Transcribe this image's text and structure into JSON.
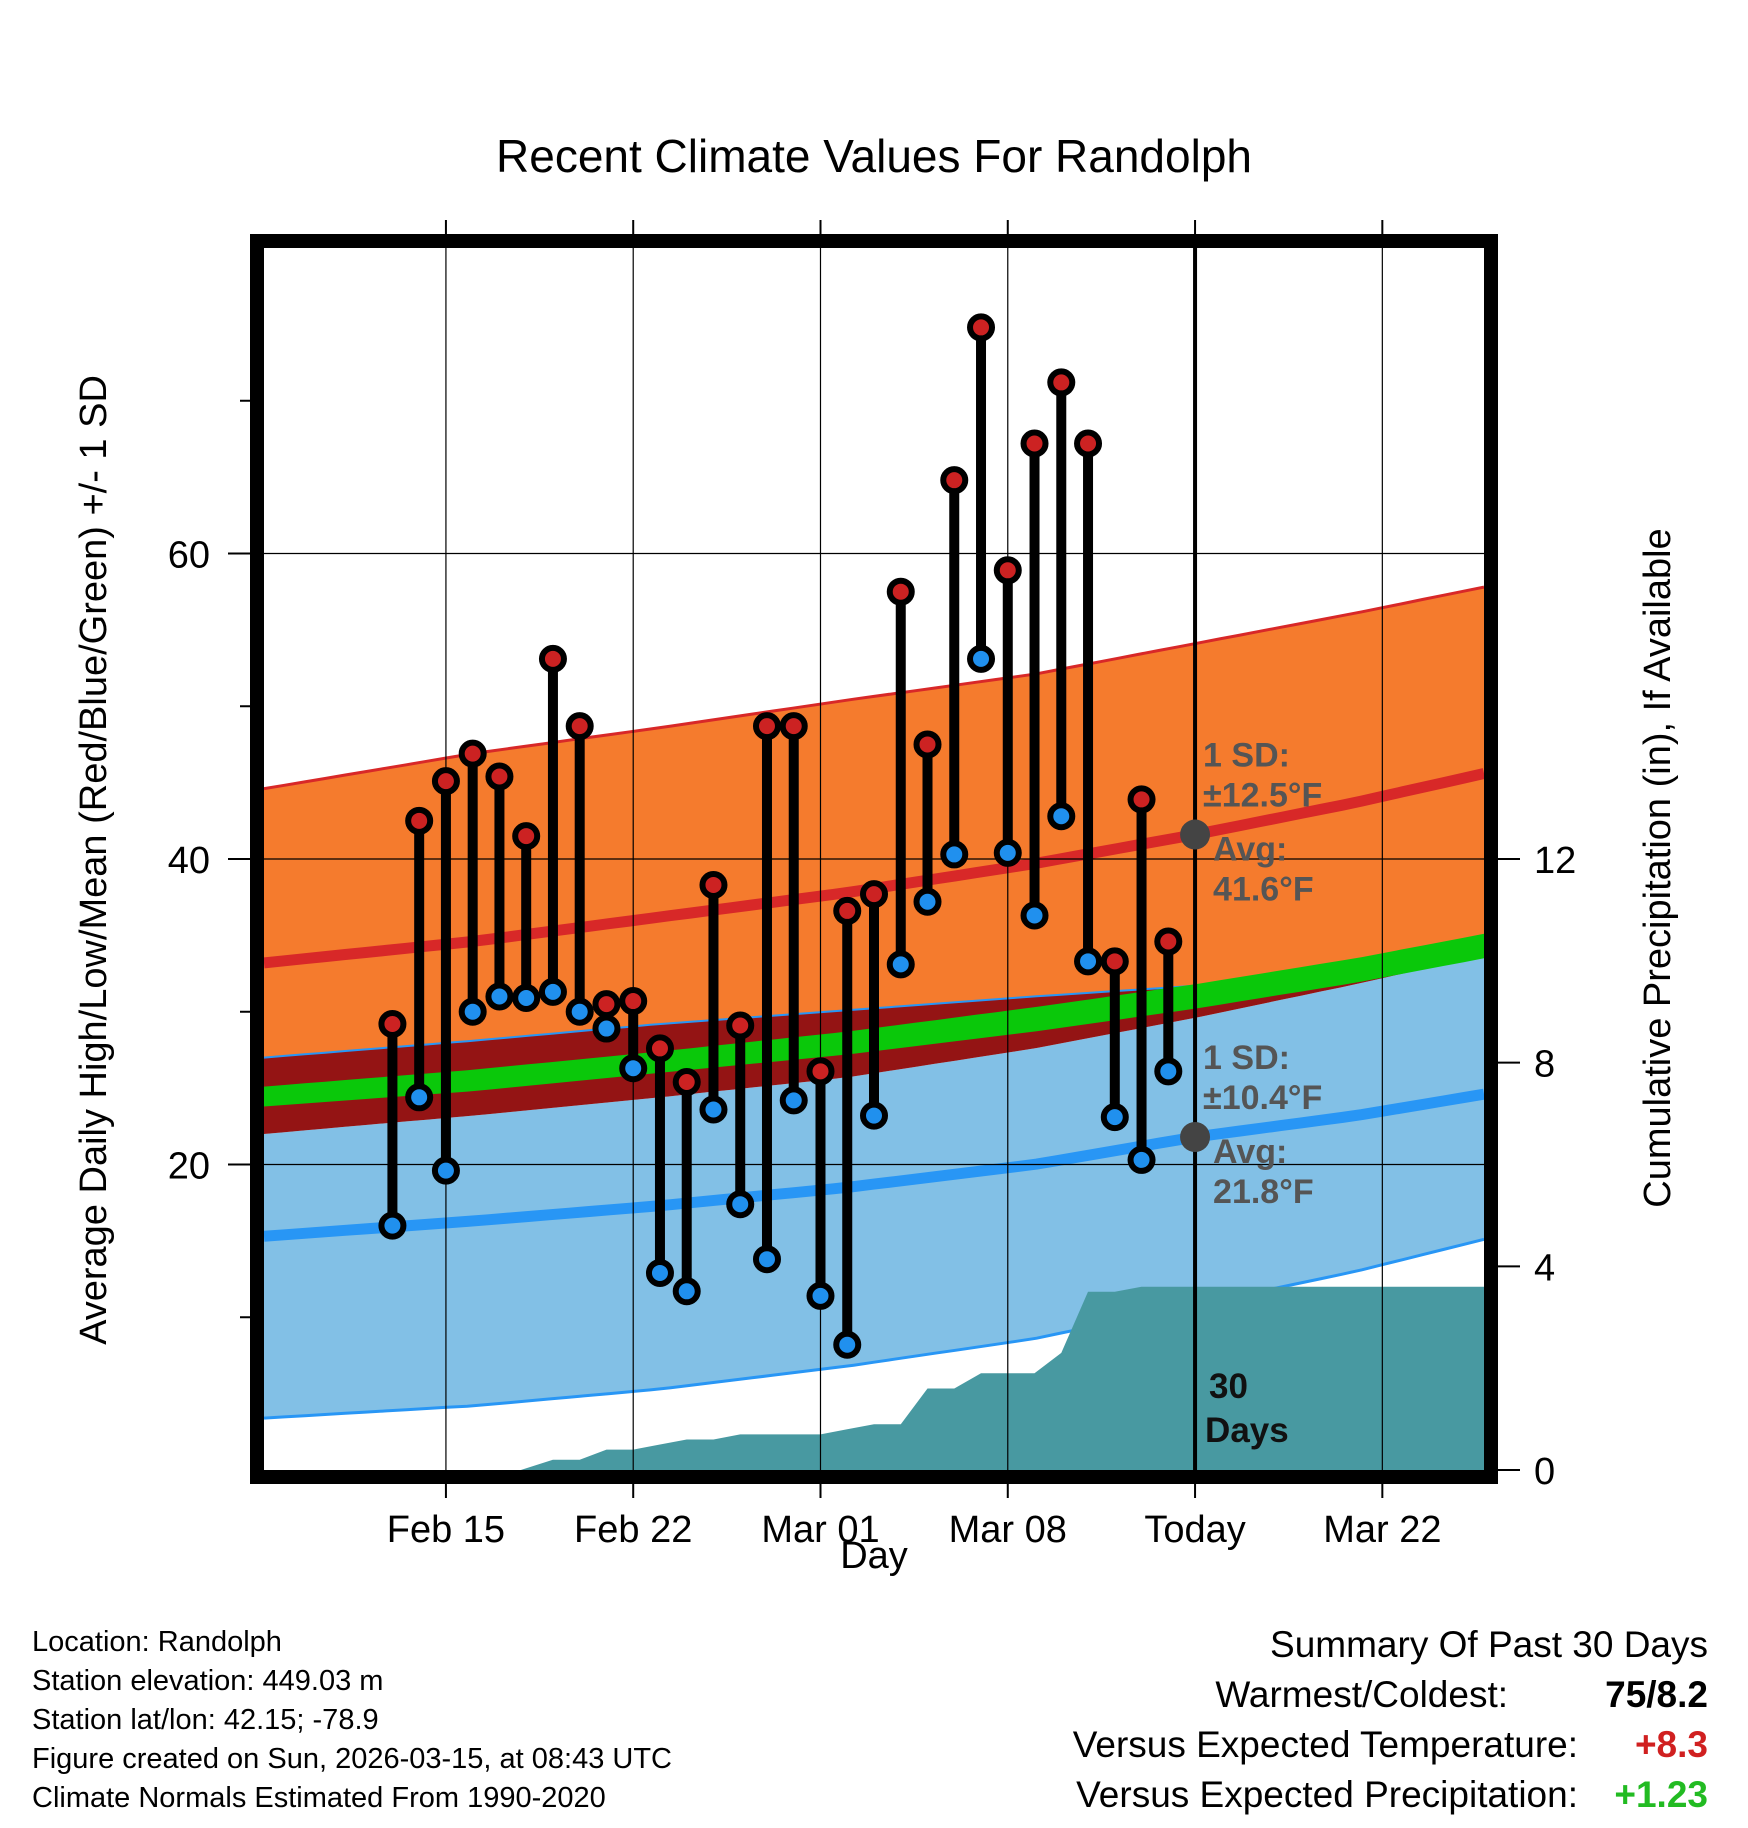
{
  "chart_data": {
    "type": "line",
    "title": "Recent Climate Values For Randolph",
    "xlabel": "Day",
    "ylabel_left": "Average Daily High/Low/Mean (Red/Blue/Green) +/- 1 SD",
    "ylabel_right": "Cumulative Precipitation (in), If Available",
    "x_range_days": [
      -34.8,
      10.8
    ],
    "ylim_left": [
      0,
      80
    ],
    "ylim_right": [
      0,
      24
    ],
    "x_ticks": [
      {
        "day": -28,
        "label": "Feb 15"
      },
      {
        "day": -21,
        "label": "Feb 22"
      },
      {
        "day": -14,
        "label": "Mar 01"
      },
      {
        "day": -7,
        "label": "Mar 08"
      },
      {
        "day": 0,
        "label": "Today"
      },
      {
        "day": 7,
        "label": "Mar 22"
      }
    ],
    "y_ticks_left": [
      20,
      40,
      60
    ],
    "y_minor_ticks_left": [
      10,
      30,
      50,
      70
    ],
    "y_ticks_right": [
      0,
      4,
      8,
      12
    ],
    "grid": true,
    "daily_temps": {
      "day": [
        -30,
        -29,
        -28,
        -27,
        -26,
        -25,
        -24,
        -23,
        -22,
        -21,
        -20,
        -19,
        -18,
        -17,
        -16,
        -15,
        -14,
        -13,
        -12,
        -11,
        -10,
        -9,
        -8,
        -7,
        -6,
        -5,
        -4,
        -3,
        -2,
        -1
      ],
      "high": [
        29.2,
        42.5,
        45.1,
        46.9,
        45.4,
        41.5,
        53.1,
        48.7,
        30.5,
        30.7,
        27.6,
        25.4,
        38.3,
        29.1,
        48.7,
        48.7,
        26.1,
        36.6,
        37.7,
        57.5,
        47.5,
        64.8,
        74.8,
        58.9,
        67.2,
        71.2,
        67.2,
        33.3,
        43.9,
        34.6
      ],
      "low": [
        16.0,
        24.4,
        19.6,
        30.0,
        31.0,
        30.9,
        31.3,
        30.0,
        28.9,
        26.3,
        12.9,
        11.7,
        23.6,
        17.4,
        13.8,
        24.2,
        11.4,
        8.2,
        23.2,
        33.1,
        37.2,
        40.3,
        53.1,
        40.4,
        36.3,
        42.8,
        33.3,
        23.1,
        20.3,
        26.1
      ]
    },
    "normals": {
      "day": [
        -34.8,
        -27,
        -20,
        -13,
        -6,
        0,
        6,
        10.8
      ],
      "high_mean": [
        33.2,
        34.6,
        36.2,
        37.8,
        39.7,
        41.6,
        43.7,
        45.6
      ],
      "high_upper": [
        44.6,
        46.9,
        48.6,
        50.4,
        52.1,
        54.1,
        56.1,
        57.8
      ],
      "high_lower": [
        27.0,
        28.1,
        29.2,
        30.1,
        31.0,
        31.7,
        32.7,
        34.2
      ],
      "mean_upper": [
        25.1,
        26.2,
        27.4,
        28.7,
        30.3,
        31.8,
        33.5,
        35.1
      ],
      "mean_lower": [
        23.8,
        24.8,
        26.0,
        27.2,
        28.7,
        30.2,
        31.9,
        33.5
      ],
      "low_mean": [
        15.3,
        16.3,
        17.3,
        18.5,
        20.0,
        21.8,
        23.2,
        24.6
      ],
      "low_upper": [
        22.0,
        23.2,
        24.4,
        25.7,
        27.6,
        29.6,
        31.8,
        33.7
      ],
      "low_lower": [
        3.4,
        4.2,
        5.3,
        6.8,
        8.6,
        10.8,
        13.0,
        15.1
      ]
    },
    "precip_cumulative": {
      "day": [
        -34.8,
        -25.2,
        -24,
        -23,
        -22,
        -21,
        -20,
        -19,
        -18,
        -17,
        -16,
        -15,
        -14,
        -13,
        -12,
        -11,
        -10,
        -9,
        -8,
        -7,
        -6,
        -5,
        -4,
        -3,
        -2,
        -1,
        0,
        10.8
      ],
      "value": [
        0,
        0,
        0.2,
        0.2,
        0.4,
        0.4,
        0.5,
        0.6,
        0.6,
        0.7,
        0.7,
        0.7,
        0.7,
        0.8,
        0.9,
        0.9,
        1.6,
        1.6,
        1.9,
        1.9,
        1.9,
        2.3,
        3.5,
        3.5,
        3.6,
        3.6,
        3.6,
        3.6
      ]
    },
    "annotations": {
      "high_sd_label": "1 SD:",
      "high_sd_value": "±12.5°F",
      "high_avg_label": "Avg:",
      "high_avg_value": "41.6°F",
      "low_sd_label": "1 SD:",
      "low_sd_value": "±10.4°F",
      "low_avg_label": "Avg:",
      "low_avg_value": "21.8°F",
      "window_count": "30",
      "window_unit": "Days"
    },
    "colors": {
      "high_band": "#f57b2d",
      "high_line": "#d82828",
      "low_band": "#82c0e6",
      "low_line": "#2896f5",
      "mean_band": "#0ac80a",
      "overlap_band": "#941414",
      "precip": "#4899a1",
      "high_marker": "#cc2222",
      "low_marker": "#2090ee",
      "today_marker": "#444444",
      "annotation_text": "#555555"
    }
  },
  "footer": {
    "location": "Location: Randolph",
    "elevation": "Station elevation: 449.03 m",
    "latlon": "Station lat/lon: 42.15; -78.9",
    "created": "Figure created on Sun, 2026-03-15, at 08:43 UTC",
    "normals": "Climate Normals Estimated From 1990-2020"
  },
  "summary": {
    "heading": "Summary Of Past 30 Days",
    "warmest_label": "Warmest/Coldest:",
    "warmest_value": "75/8.2",
    "temp_label": "Versus Expected Temperature:",
    "temp_value": "+8.3",
    "temp_color": "#d02020",
    "precip_label": "Versus Expected Precipitation:",
    "precip_value": "+1.23",
    "precip_color": "#22bb22"
  }
}
